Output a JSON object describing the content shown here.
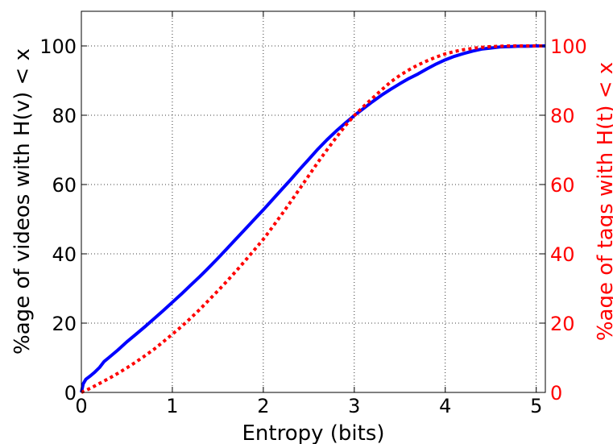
{
  "chart_data": {
    "type": "line",
    "xlabel": "Entropy (bits)",
    "ylabel_left": "%age of videos with H(v) < x",
    "ylabel_right": "%age of tags with H(t) < x",
    "xlim": [
      0,
      5.1
    ],
    "ylim_left": [
      0,
      110
    ],
    "ylim_right": [
      0,
      110
    ],
    "xticks": [
      "0",
      "1",
      "2",
      "3",
      "4",
      "5"
    ],
    "yticks_left": [
      "0",
      "20",
      "40",
      "60",
      "80",
      "100"
    ],
    "yticks_right": [
      "0",
      "20",
      "40",
      "60",
      "80",
      "100"
    ],
    "grid": true,
    "colors": {
      "left": "#000000",
      "right": "#ff0000",
      "videos": "#0000ff",
      "tags": "#ff0000"
    },
    "series": [
      {
        "axis": "left",
        "style": "solid",
        "x": [
          0,
          0.02,
          0.05,
          0.1,
          0.15,
          0.2,
          0.25,
          0.3,
          0.4,
          0.5,
          0.6,
          0.7,
          0.8,
          0.9,
          1.0,
          1.1,
          1.2,
          1.3,
          1.4,
          1.5,
          1.6,
          1.7,
          1.8,
          1.9,
          2.0,
          2.1,
          2.2,
          2.3,
          2.4,
          2.5,
          2.6,
          2.7,
          2.8,
          2.9,
          3.0,
          3.1,
          3.2,
          3.3,
          3.4,
          3.5,
          3.6,
          3.7,
          3.8,
          3.9,
          4.0,
          4.1,
          4.2,
          4.3,
          4.4,
          4.5,
          4.6,
          4.7,
          4.8,
          4.9,
          5.0,
          5.1
        ],
        "values": [
          0,
          2.5,
          3.8,
          4.8,
          5.9,
          7.2,
          8.9,
          10.0,
          12.2,
          14.6,
          16.8,
          19.0,
          21.3,
          23.6,
          26.0,
          28.4,
          30.9,
          33.4,
          36.0,
          38.7,
          41.5,
          44.3,
          47.1,
          49.9,
          52.7,
          55.6,
          58.5,
          61.4,
          64.4,
          67.3,
          70.2,
          72.9,
          75.4,
          77.7,
          79.9,
          81.9,
          83.9,
          85.8,
          87.5,
          89.1,
          90.6,
          91.9,
          93.4,
          94.8,
          96.0,
          97.0,
          97.8,
          98.5,
          99.1,
          99.4,
          99.7,
          99.8,
          99.9,
          99.9,
          100,
          100
        ]
      },
      {
        "axis": "right",
        "style": "dotted",
        "x": [
          0,
          0.1,
          0.2,
          0.3,
          0.4,
          0.5,
          0.6,
          0.7,
          0.8,
          0.9,
          1.0,
          1.1,
          1.2,
          1.3,
          1.4,
          1.5,
          1.6,
          1.7,
          1.8,
          1.9,
          2.0,
          2.1,
          2.2,
          2.3,
          2.4,
          2.5,
          2.6,
          2.7,
          2.8,
          2.9,
          3.0,
          3.1,
          3.2,
          3.3,
          3.4,
          3.5,
          3.6,
          3.7,
          3.8,
          3.9,
          4.0,
          4.1,
          4.2,
          4.3,
          4.4,
          4.5,
          4.6,
          4.7,
          4.8,
          4.9,
          5.0,
          5.1
        ],
        "values": [
          0,
          1.2,
          2.6,
          4.0,
          5.5,
          7.1,
          8.8,
          10.6,
          12.5,
          14.6,
          16.8,
          19.0,
          21.4,
          23.9,
          26.6,
          29.3,
          32.1,
          35.0,
          38.0,
          41.1,
          44.2,
          47.7,
          51.3,
          55.0,
          58.8,
          62.6,
          66.4,
          70.0,
          73.5,
          76.9,
          79.9,
          82.5,
          84.9,
          87.3,
          89.6,
          91.5,
          93.1,
          94.5,
          95.7,
          96.8,
          97.7,
          98.4,
          98.9,
          99.3,
          99.6,
          99.8,
          99.9,
          100,
          100,
          100,
          100,
          100
        ]
      }
    ]
  }
}
